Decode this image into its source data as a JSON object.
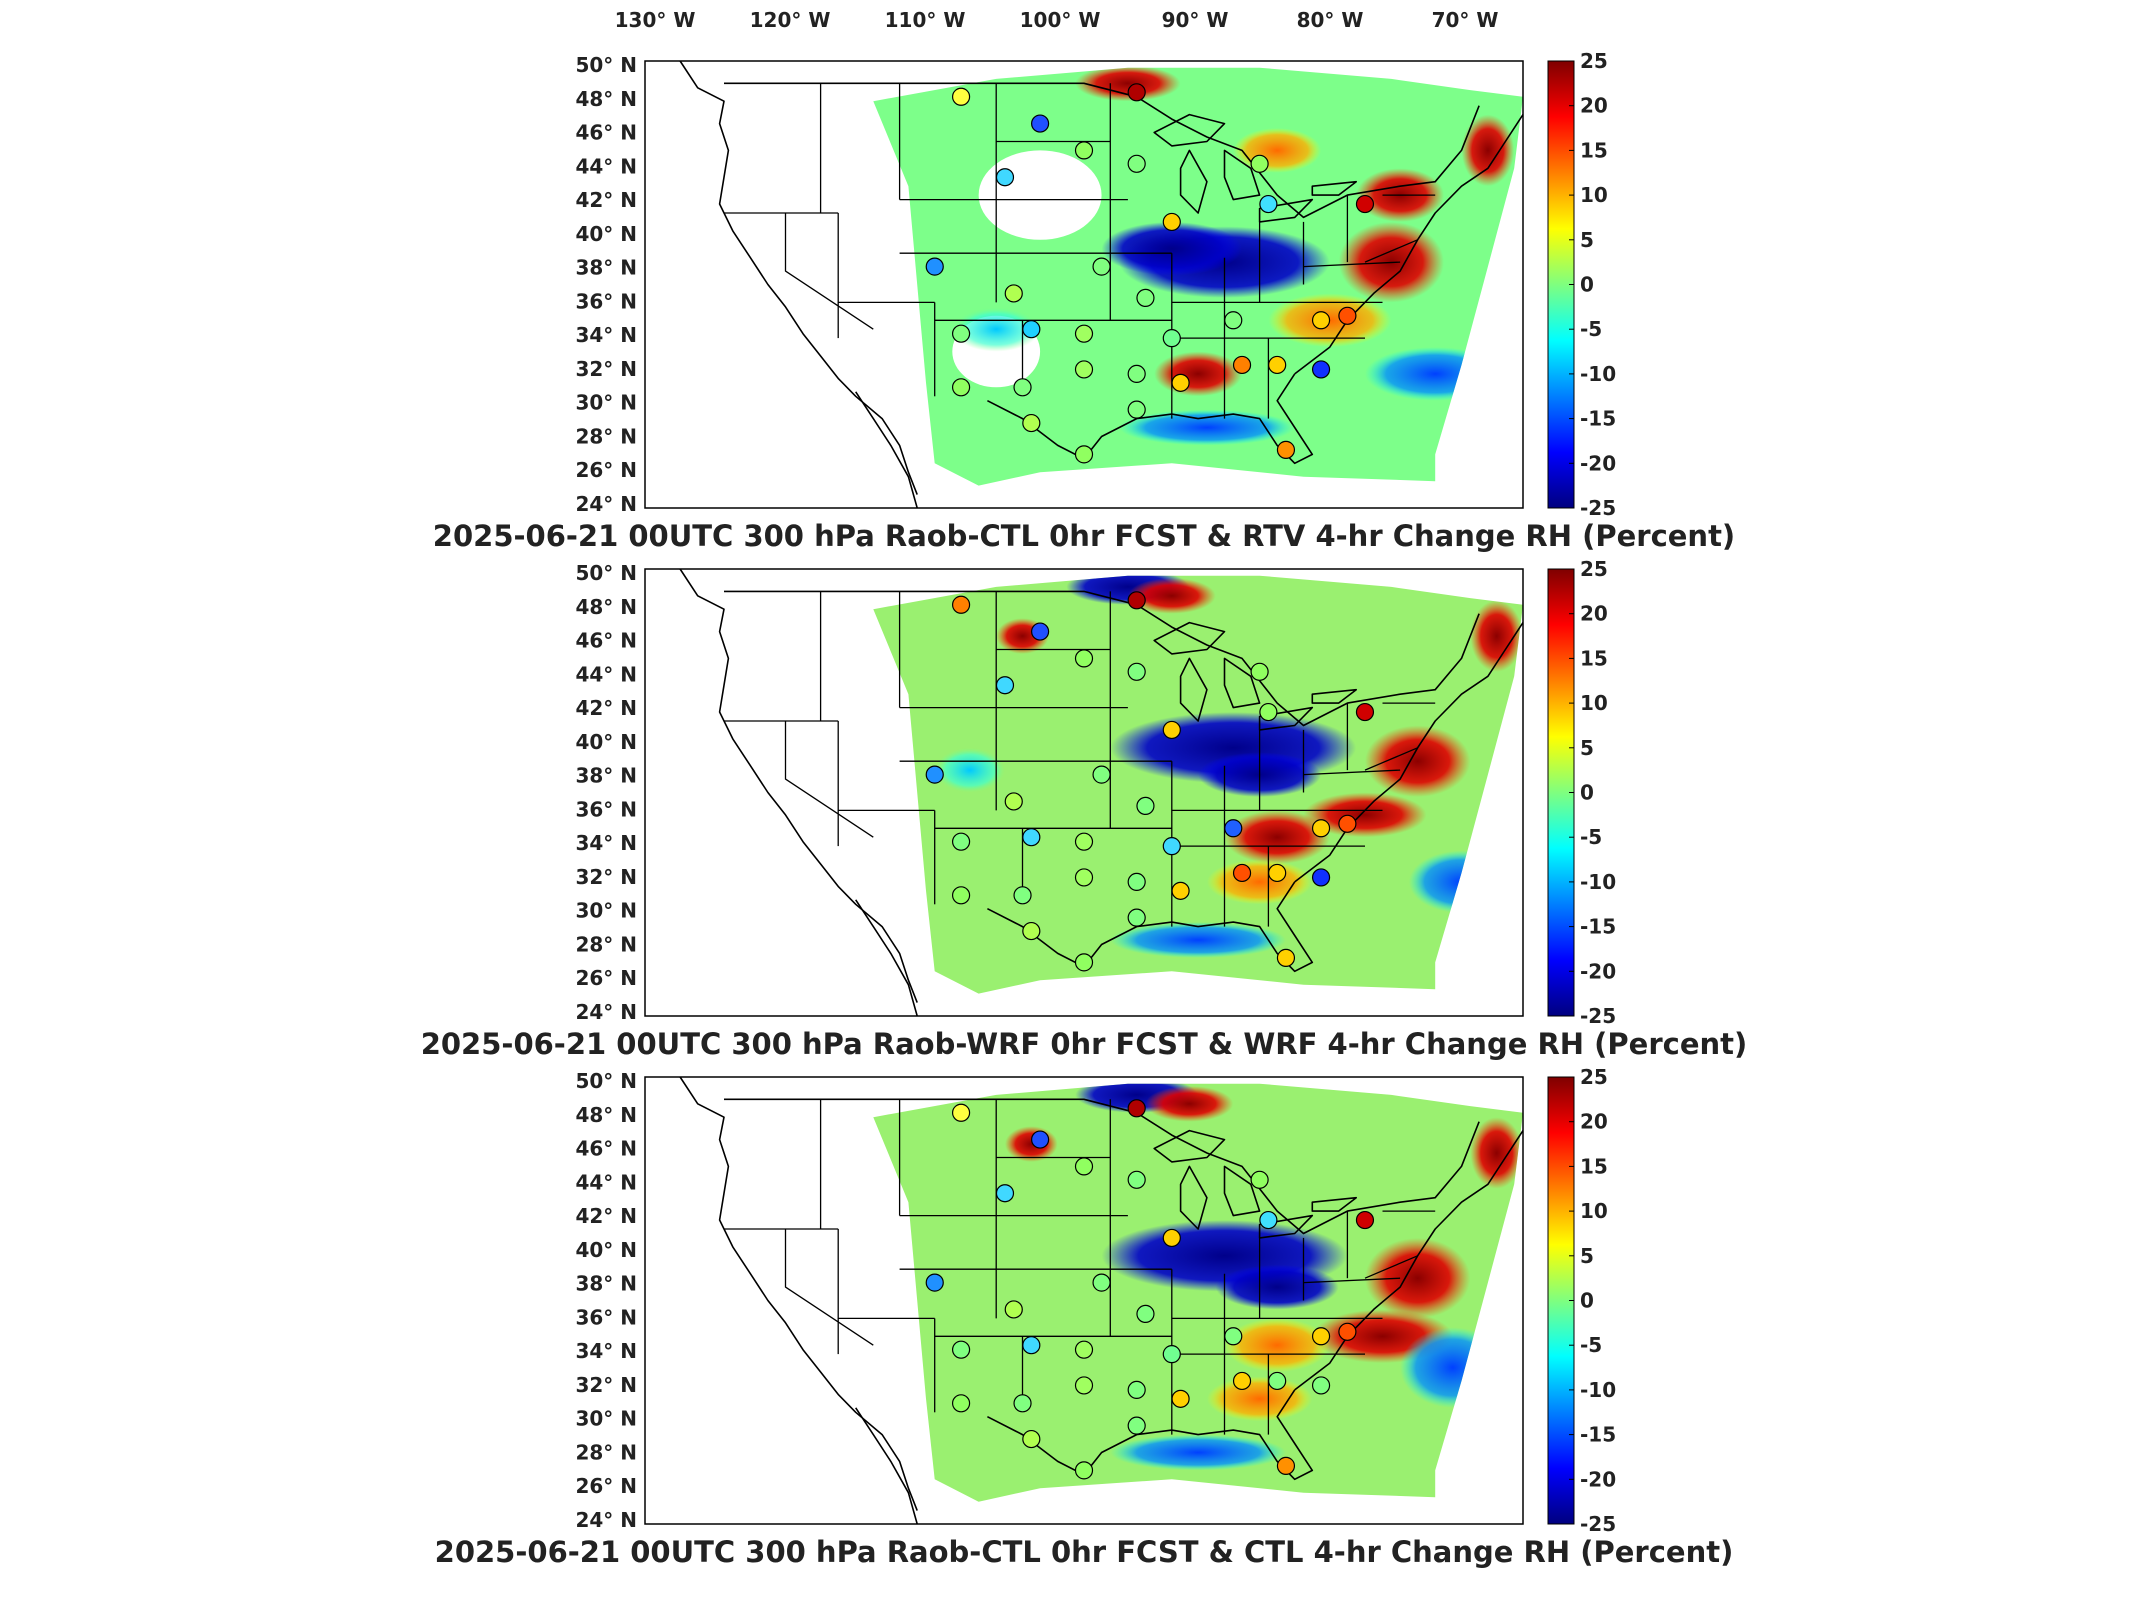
{
  "figure": {
    "longitude_labels": [
      "130° W",
      "120° W",
      "110° W",
      "100° W",
      "90° W",
      "80° W",
      "70° W"
    ],
    "latitude_labels": [
      "50° N",
      "48° N",
      "46° N",
      "44° N",
      "42° N",
      "40° N",
      "38° N",
      "36° N",
      "34° N",
      "32° N",
      "30° N",
      "28° N",
      "26° N",
      "24° N"
    ],
    "colorbar_ticks": [
      "25",
      "20",
      "15",
      "10",
      "5",
      "0",
      "-5",
      "-10",
      "-15",
      "-20",
      "-25"
    ],
    "colorscale": [
      "#00007f",
      "#0000ff",
      "#007fff",
      "#00ffff",
      "#7fff7f",
      "#ffff00",
      "#ff7f00",
      "#ff0000",
      "#7f0000"
    ],
    "panels": [
      {
        "title": "2025-06-21 00UTC 300 hPa Raob-CTL 0hr FCST & RTV 4-hr Change RH (Percent)"
      },
      {
        "title": "2025-06-21 00UTC 300 hPa Raob-WRF 0hr FCST & WRF 4-hr Change RH (Percent)"
      },
      {
        "title": "2025-06-21 00UTC 300 hPa Raob-CTL 0hr FCST & CTL 4-hr Change RH (Percent)"
      }
    ]
  }
}
